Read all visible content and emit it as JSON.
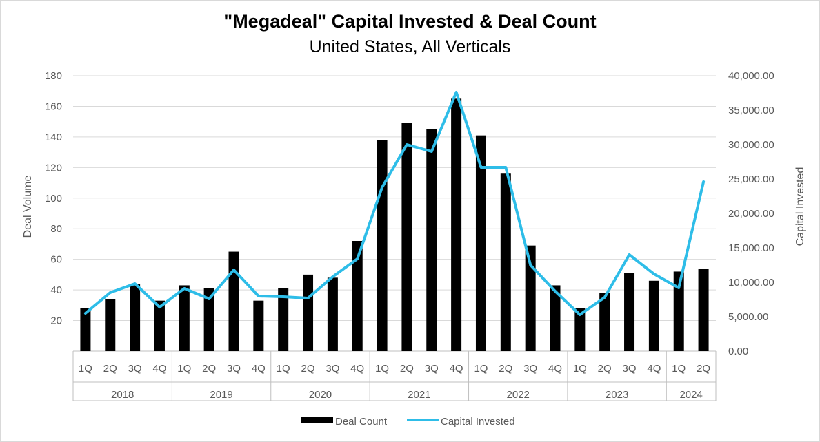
{
  "chart_data": {
    "type": "bar",
    "title": "\"Megadeal\" Capital Invested & Deal Count",
    "subtitle": "United States, All Verticals",
    "ylabel": "Deal Volume",
    "y2label": "Capital Invested",
    "ylim": [
      0,
      180
    ],
    "y2lim": [
      0,
      40000
    ],
    "yticks": [
      "20",
      "40",
      "60",
      "80",
      "100",
      "120",
      "140",
      "160",
      "180"
    ],
    "y2ticks": [
      "0.00",
      "5,000.00",
      "10,000.00",
      "15,000.00",
      "20,000.00",
      "25,000.00",
      "30,000.00",
      "35,000.00",
      "40,000.00"
    ],
    "grid": true,
    "legend_position": "bottom",
    "categories": [
      "1Q",
      "2Q",
      "3Q",
      "4Q",
      "1Q",
      "2Q",
      "3Q",
      "4Q",
      "1Q",
      "2Q",
      "3Q",
      "4Q",
      "1Q",
      "2Q",
      "3Q",
      "4Q",
      "1Q",
      "2Q",
      "3Q",
      "4Q",
      "1Q",
      "2Q",
      "3Q",
      "4Q",
      "1Q",
      "2Q"
    ],
    "groups": [
      {
        "label": "2018",
        "count": 4
      },
      {
        "label": "2019",
        "count": 4
      },
      {
        "label": "2020",
        "count": 4
      },
      {
        "label": "2021",
        "count": 4
      },
      {
        "label": "2022",
        "count": 4
      },
      {
        "label": "2023",
        "count": 4
      },
      {
        "label": "2024",
        "count": 2
      }
    ],
    "series": [
      {
        "name": "Deal Count",
        "kind": "bar",
        "axis": "left",
        "color": "#000000",
        "values": [
          28,
          34,
          44,
          33,
          43,
          41,
          65,
          33,
          41,
          50,
          48,
          72,
          138,
          149,
          145,
          165,
          141,
          116,
          69,
          43,
          28,
          38,
          51,
          46,
          52,
          54
        ]
      },
      {
        "name": "Capital Invested",
        "kind": "line",
        "axis": "right",
        "color": "#2EBDE8",
        "values": [
          5500,
          8500,
          9800,
          6400,
          9100,
          7600,
          11800,
          8000,
          7900,
          7700,
          10800,
          13400,
          23800,
          30000,
          29000,
          37600,
          26700,
          26700,
          12500,
          8700,
          5300,
          7800,
          14000,
          11200,
          9200,
          24600
        ]
      }
    ]
  }
}
